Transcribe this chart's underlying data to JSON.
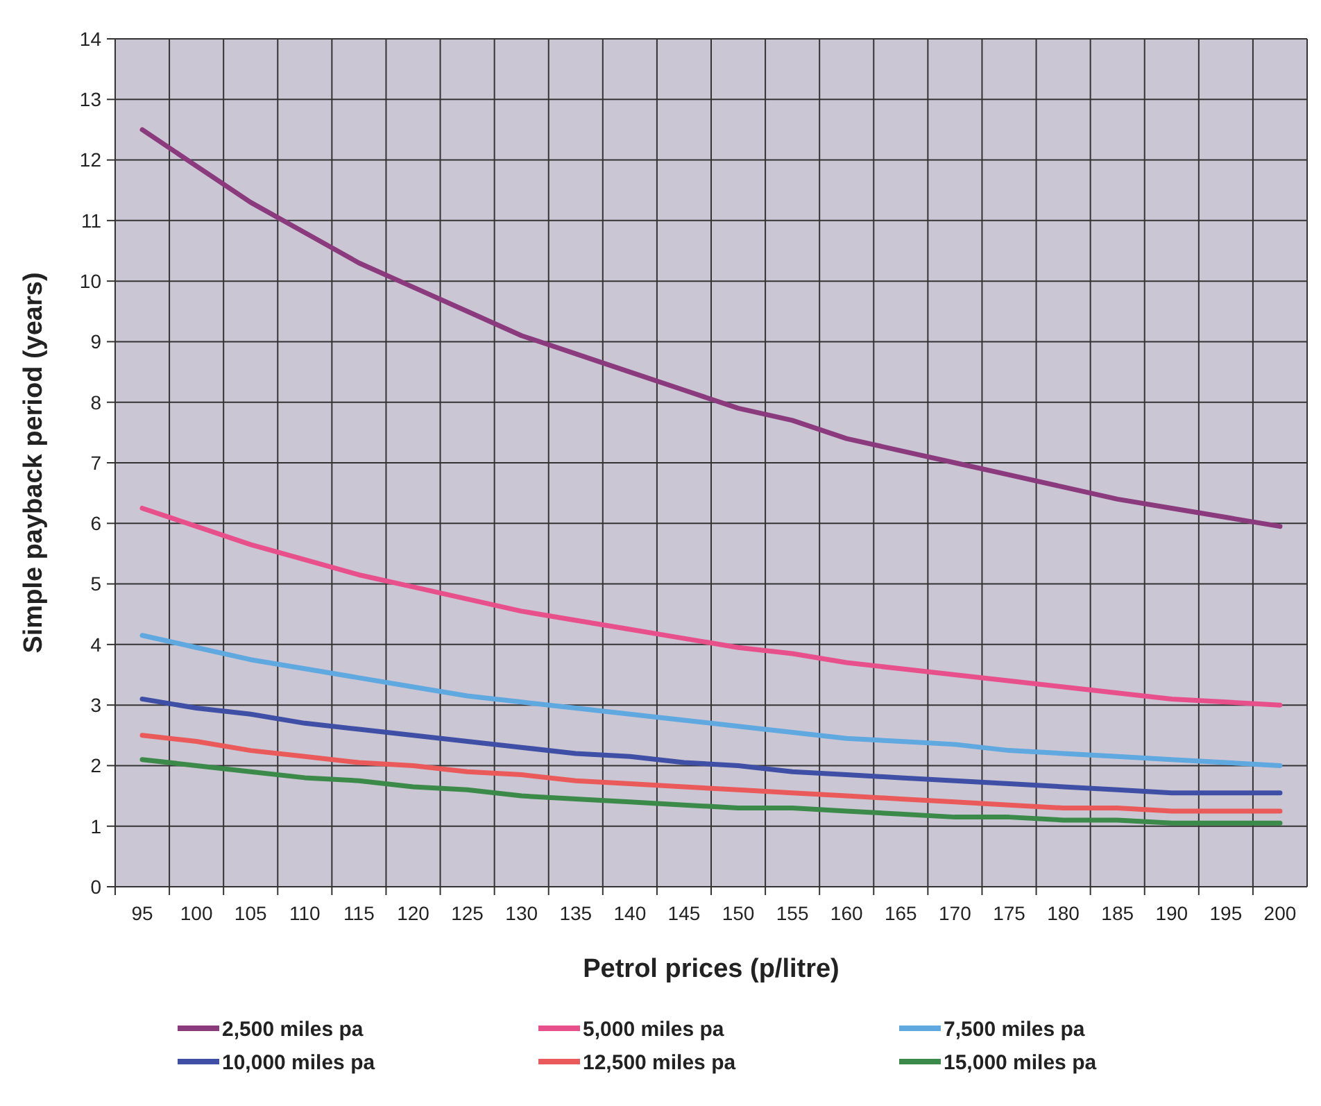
{
  "chart_data": {
    "type": "line",
    "xlabel": "Petrol prices (p/litre)",
    "ylabel": "Simple payback period (years)",
    "categories": [
      "95",
      "100",
      "105",
      "110",
      "115",
      "120",
      "125",
      "130",
      "135",
      "140",
      "145",
      "150",
      "155",
      "160",
      "165",
      "170",
      "175",
      "180",
      "185",
      "190",
      "195",
      "200"
    ],
    "ylim": [
      0,
      14
    ],
    "yticks": [
      0,
      1,
      2,
      3,
      4,
      5,
      6,
      7,
      8,
      9,
      10,
      11,
      12,
      13,
      14
    ],
    "grid": true,
    "legend": "bottom",
    "marker": "none",
    "line_style": "solid",
    "series": [
      {
        "name": "2,500 miles pa",
        "color": "#8b3a7e",
        "values": [
          12.5,
          11.9,
          11.3,
          10.8,
          10.3,
          9.9,
          9.5,
          9.1,
          8.8,
          8.5,
          8.2,
          7.9,
          7.7,
          7.4,
          7.2,
          7.0,
          6.8,
          6.6,
          6.4,
          6.25,
          6.1,
          5.95
        ]
      },
      {
        "name": "5,000 miles pa",
        "color": "#e8508c",
        "values": [
          6.25,
          5.95,
          5.65,
          5.4,
          5.15,
          4.95,
          4.75,
          4.55,
          4.4,
          4.25,
          4.1,
          3.95,
          3.85,
          3.7,
          3.6,
          3.5,
          3.4,
          3.3,
          3.2,
          3.1,
          3.05,
          3.0
        ]
      },
      {
        "name": "7,500 miles pa",
        "color": "#5fa8e0",
        "values": [
          4.15,
          3.95,
          3.75,
          3.6,
          3.45,
          3.3,
          3.15,
          3.05,
          2.95,
          2.85,
          2.75,
          2.65,
          2.55,
          2.45,
          2.4,
          2.35,
          2.25,
          2.2,
          2.15,
          2.1,
          2.05,
          2.0
        ]
      },
      {
        "name": "10,000 miles pa",
        "color": "#3f4fa6",
        "values": [
          3.1,
          2.95,
          2.85,
          2.7,
          2.6,
          2.5,
          2.4,
          2.3,
          2.2,
          2.15,
          2.05,
          2.0,
          1.9,
          1.85,
          1.8,
          1.75,
          1.7,
          1.65,
          1.6,
          1.55,
          1.55,
          1.55
        ]
      },
      {
        "name": "12,500 miles pa",
        "color": "#ea5a5a",
        "values": [
          2.5,
          2.4,
          2.25,
          2.15,
          2.05,
          2.0,
          1.9,
          1.85,
          1.75,
          1.7,
          1.65,
          1.6,
          1.55,
          1.5,
          1.45,
          1.4,
          1.35,
          1.3,
          1.3,
          1.25,
          1.25,
          1.25
        ]
      },
      {
        "name": "15,000 miles pa",
        "color": "#3b8a4a",
        "values": [
          2.1,
          2.0,
          1.9,
          1.8,
          1.75,
          1.65,
          1.6,
          1.5,
          1.45,
          1.4,
          1.35,
          1.3,
          1.3,
          1.25,
          1.2,
          1.15,
          1.15,
          1.1,
          1.1,
          1.05,
          1.05,
          1.05
        ]
      }
    ]
  }
}
